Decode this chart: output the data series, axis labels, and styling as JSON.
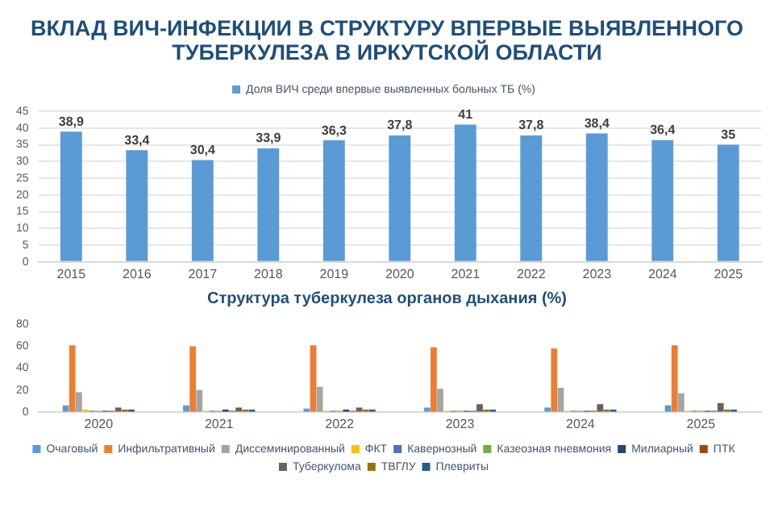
{
  "chart_data": [
    {
      "type": "bar",
      "title": "ВКЛАД ВИЧ-ИНФЕКЦИИ В СТРУКТУРУ ВПЕРВЫЕ ВЫЯВЛЕННОГО ТУБЕРКУЛЕЗА В ИРКУТСКОЙ ОБЛАСТИ",
      "categories": [
        "2015",
        "2016",
        "2017",
        "2018",
        "2019",
        "2020",
        "2021",
        "2022",
        "2023",
        "2024",
        "2025"
      ],
      "series": [
        {
          "name": "Доля ВИЧ среди впервые выявленных больных ТБ (%)",
          "color": "#5b9bd5",
          "values": [
            38.9,
            33.4,
            30.4,
            33.9,
            36.3,
            37.8,
            41,
            37.8,
            38.4,
            36.4,
            35
          ],
          "value_labels": [
            "38,9",
            "33,4",
            "30,4",
            "33,9",
            "36,3",
            "37,8",
            "41",
            "37,8",
            "38,4",
            "36,4",
            "35"
          ]
        }
      ],
      "ylim": [
        0,
        45
      ],
      "yticks": [
        0,
        5,
        10,
        15,
        20,
        25,
        30,
        35,
        40,
        45
      ],
      "grid": "y",
      "legend": "top"
    },
    {
      "type": "bar",
      "title": "Структура туберкулеза органов дыхания (%)",
      "categories": [
        "2020",
        "2021",
        "2022",
        "2023",
        "2024",
        "2025"
      ],
      "series": [
        {
          "name": "Очаговый",
          "color": "#5b9bd5",
          "values": [
            6,
            6,
            3,
            4,
            4,
            6
          ]
        },
        {
          "name": "Инфильтративный",
          "color": "#ed7d31",
          "values": [
            61,
            60,
            61,
            59,
            58,
            61
          ]
        },
        {
          "name": "Диссеминированный",
          "color": "#a5a5a5",
          "values": [
            18,
            20,
            23,
            21,
            22,
            17
          ]
        },
        {
          "name": "ФКТ",
          "color": "#ffc000",
          "values": [
            2,
            1,
            1,
            1,
            1,
            1
          ]
        },
        {
          "name": "Кавернозный",
          "color": "#4472c4",
          "values": [
            1,
            1,
            1,
            1,
            1,
            1
          ]
        },
        {
          "name": "Казеозная пневмония",
          "color": "#70ad47",
          "values": [
            1,
            1,
            1,
            1,
            1,
            1
          ]
        },
        {
          "name": "Милиарный",
          "color": "#264478",
          "values": [
            1,
            2,
            2,
            1,
            1,
            1
          ]
        },
        {
          "name": "ПТК",
          "color": "#9e480e",
          "values": [
            1,
            1,
            1,
            1,
            1,
            1
          ]
        },
        {
          "name": "Туберкулома",
          "color": "#636363",
          "values": [
            4,
            4,
            4,
            7,
            7,
            8
          ]
        },
        {
          "name": "ТВГЛУ",
          "color": "#997300",
          "values": [
            2,
            2,
            2,
            2,
            2,
            2
          ]
        },
        {
          "name": "Плевриты",
          "color": "#255e91",
          "values": [
            2,
            2,
            2,
            2,
            2,
            2
          ]
        }
      ],
      "ylim": [
        0,
        80
      ],
      "yticks": [
        0,
        20,
        40,
        60,
        80
      ],
      "grid": false,
      "legend": "bottom"
    }
  ]
}
